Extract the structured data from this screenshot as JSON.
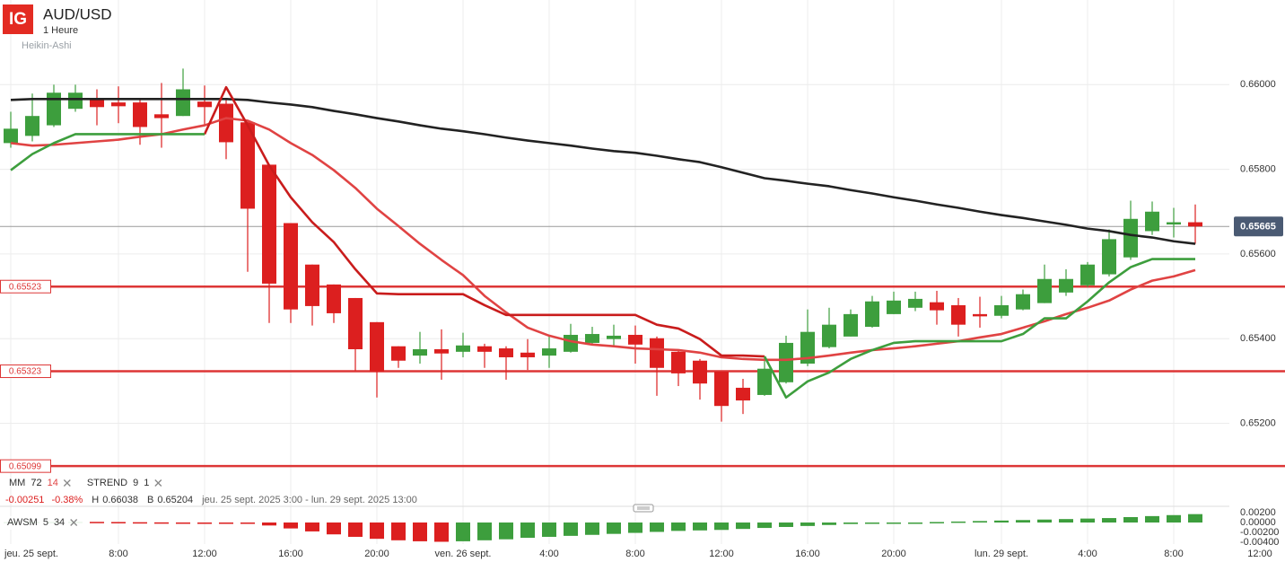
{
  "chart_data": [
    {
      "type": "candlestick",
      "brand": "IG",
      "title": "AUD/USD",
      "subtitle": "1 Heure",
      "style": "Heikin-Ashi",
      "categories": [
        "jeu. 25 sept.",
        null,
        null,
        null,
        null,
        "8:00",
        null,
        null,
        null,
        "12:00",
        null,
        null,
        null,
        "16:00",
        null,
        null,
        null,
        "20:00",
        null,
        null,
        null,
        "ven. 26 sept.",
        null,
        null,
        null,
        "4:00",
        null,
        null,
        null,
        "8:00",
        null,
        null,
        null,
        "12:00",
        null,
        null,
        null,
        "16:00",
        null,
        null,
        null,
        "20:00",
        null,
        null,
        null,
        null,
        "lun. 29 sept.",
        null,
        null,
        null,
        "4:00",
        null,
        null,
        null,
        "8:00",
        null,
        null,
        null,
        "12:00"
      ],
      "open": [
        0.65862,
        0.65879,
        0.65904,
        0.65943,
        0.65964,
        0.65958,
        0.65958,
        0.6593,
        0.65926,
        0.6596,
        0.65955,
        0.65911,
        0.65811,
        0.65673,
        0.65575,
        0.65528,
        0.65496,
        0.65439,
        0.65382,
        0.6536,
        0.65375,
        0.65369,
        0.65382,
        0.65377,
        0.65367,
        0.6536,
        0.65369,
        0.6539,
        0.65399,
        0.65409,
        0.65401,
        0.65369,
        0.65348,
        0.65322,
        0.65284,
        0.65267,
        0.65297,
        0.65341,
        0.6538,
        0.65405,
        0.65428,
        0.65458,
        0.65473,
        0.65486,
        0.65479,
        0.65458,
        0.65454,
        0.65469,
        0.65484,
        0.65509,
        0.65526,
        0.65552,
        0.65592,
        0.65654,
        0.65671,
        0.65675,
        null,
        null,
        null
      ],
      "high": [
        0.65936,
        0.65979,
        0.66,
        0.66,
        0.65989,
        0.65996,
        0.65968,
        0.66004,
        0.66038,
        0.65998,
        0.65968,
        0.65915,
        0.65811,
        0.65673,
        0.65575,
        0.65528,
        0.65496,
        0.65439,
        0.65382,
        0.65416,
        0.65422,
        0.65414,
        0.65388,
        0.65382,
        0.65399,
        0.65405,
        0.65435,
        0.65428,
        0.65433,
        0.65431,
        0.65405,
        0.65373,
        0.65352,
        0.65322,
        0.65305,
        0.65356,
        0.65407,
        0.65469,
        0.65473,
        0.65469,
        0.65501,
        0.65511,
        0.65511,
        0.65513,
        0.65496,
        0.65499,
        0.65501,
        0.65516,
        0.65575,
        0.65564,
        0.65581,
        0.65658,
        0.65726,
        0.65724,
        0.65709,
        0.65717,
        null,
        null,
        null
      ],
      "low": [
        0.65851,
        0.65866,
        0.659,
        0.65936,
        0.65904,
        0.65909,
        0.65858,
        0.65851,
        0.65926,
        0.65904,
        0.65824,
        0.65558,
        0.65437,
        0.65437,
        0.65431,
        0.65437,
        0.65324,
        0.65261,
        0.65331,
        0.65341,
        0.65303,
        0.65356,
        0.65331,
        0.65303,
        0.65326,
        0.65331,
        0.65367,
        0.65386,
        0.65382,
        0.65341,
        0.65265,
        0.65288,
        0.65256,
        0.65204,
        0.65222,
        0.65265,
        0.65294,
        0.65335,
        0.65377,
        0.65405,
        0.65426,
        0.65458,
        0.65465,
        0.65433,
        0.65405,
        0.65426,
        0.65448,
        0.65467,
        0.65484,
        0.65501,
        0.65522,
        0.65547,
        0.65586,
        0.65645,
        0.65639,
        0.65624,
        null,
        null,
        null
      ],
      "close": [
        0.65896,
        0.65926,
        0.65981,
        0.65981,
        0.65947,
        0.65949,
        0.659,
        0.65921,
        0.65989,
        0.65947,
        0.65864,
        0.65707,
        0.6553,
        0.65469,
        0.65477,
        0.6546,
        0.65375,
        0.65322,
        0.65348,
        0.65375,
        0.65365,
        0.65384,
        0.65369,
        0.65356,
        0.65356,
        0.65377,
        0.65409,
        0.65411,
        0.65407,
        0.65386,
        0.65331,
        0.65318,
        0.65294,
        0.65241,
        0.65254,
        0.65329,
        0.6539,
        0.65416,
        0.65433,
        0.65458,
        0.65488,
        0.6549,
        0.65494,
        0.65467,
        0.65433,
        0.65454,
        0.65479,
        0.65505,
        0.65541,
        0.65541,
        0.65575,
        0.65635,
        0.65683,
        0.657,
        0.65675,
        0.65665,
        null,
        null,
        null
      ],
      "up_color": "#3d9e3d",
      "down_color": "#dc1f1f",
      "ylim": [
        0.65076,
        0.662
      ],
      "yticks": [
        {
          "value": 0.652,
          "label": "0.65200"
        },
        {
          "value": 0.654,
          "label": "0.65400"
        },
        {
          "value": 0.656,
          "label": "0.65600"
        },
        {
          "value": 0.658,
          "label": "0.65800"
        },
        {
          "value": 0.66,
          "label": "0.66000"
        }
      ],
      "grid": true,
      "moving_averages": {
        "name": "MM",
        "series": [
          {
            "period": 72,
            "color": "#222222",
            "values": [
              0.65964,
              0.65966,
              0.65966,
              0.65966,
              0.65966,
              0.65966,
              0.65966,
              0.65966,
              0.65966,
              0.65966,
              0.65966,
              0.65964,
              0.65958,
              0.65953,
              0.65947,
              0.65938,
              0.6593,
              0.65921,
              0.65913,
              0.65904,
              0.65896,
              0.6589,
              0.65883,
              0.65875,
              0.65868,
              0.65862,
              0.65856,
              0.65849,
              0.65843,
              0.65839,
              0.65832,
              0.65824,
              0.65817,
              0.65805,
              0.65792,
              0.65779,
              0.65773,
              0.65766,
              0.6576,
              0.65751,
              0.65743,
              0.65734,
              0.65726,
              0.65717,
              0.65709,
              0.657,
              0.65692,
              0.65685,
              0.65677,
              0.65669,
              0.6566,
              0.65654,
              0.65645,
              0.65639,
              0.6563,
              0.65624,
              null,
              null,
              null
            ]
          },
          {
            "period": 14,
            "color": "#e04343",
            "values": [
              0.65862,
              0.65856,
              0.65858,
              0.65862,
              0.65866,
              0.6587,
              0.65877,
              0.65883,
              0.65894,
              0.65904,
              0.65921,
              0.65915,
              0.65894,
              0.65862,
              0.65834,
              0.65798,
              0.65756,
              0.65707,
              0.65666,
              0.65624,
              0.65586,
              0.6555,
              0.65501,
              0.65462,
              0.65426,
              0.65407,
              0.65394,
              0.65386,
              0.65382,
              0.65377,
              0.65375,
              0.65373,
              0.65367,
              0.65356,
              0.65352,
              0.6535,
              0.6535,
              0.65354,
              0.6536,
              0.65367,
              0.65373,
              0.65377,
              0.65382,
              0.65388,
              0.65394,
              0.65403,
              0.65411,
              0.65426,
              0.65441,
              0.65458,
              0.65473,
              0.6549,
              0.65516,
              0.65537,
              0.65547,
              0.65562,
              null,
              null,
              null
            ]
          }
        ]
      },
      "supertrend": {
        "name": "STREND",
        "params": [
          9,
          1
        ],
        "up": {
          "color": "#3d9e3d",
          "values": [
            0.65798,
            0.65836,
            0.65862,
            0.65883,
            0.65883,
            0.65883,
            0.65883,
            0.65883,
            0.65883,
            0.65883,
            null,
            null,
            null,
            null,
            null,
            null,
            null,
            null,
            null,
            null,
            null,
            null,
            null,
            null,
            null,
            null,
            null,
            null,
            null,
            null,
            null,
            null,
            null,
            null,
            null,
            0.65358,
            0.65261,
            0.65299,
            0.6532,
            0.65352,
            0.65373,
            0.6539,
            0.65394,
            0.65394,
            0.65394,
            0.65394,
            0.65394,
            0.65411,
            0.65448,
            0.65448,
            0.65488,
            0.65533,
            0.65569,
            0.65588,
            0.65588,
            0.65588,
            null,
            null,
            null
          ]
        },
        "down": {
          "color": "#c91c1c",
          "values": [
            null,
            null,
            null,
            null,
            null,
            null,
            null,
            null,
            null,
            0.65883,
            0.65994,
            0.65904,
            0.65809,
            0.65734,
            0.65675,
            0.65628,
            0.65564,
            0.65507,
            0.65505,
            0.65505,
            0.65505,
            0.65505,
            0.65479,
            0.65456,
            0.65456,
            0.65456,
            0.65456,
            0.65456,
            0.65456,
            0.65456,
            0.65433,
            0.65424,
            0.65399,
            0.6536,
            0.6536,
            0.65358,
            null,
            null,
            null,
            null,
            null,
            null,
            null,
            null,
            null,
            null,
            null,
            null,
            null,
            null,
            null,
            null,
            null,
            null,
            null,
            null,
            null,
            null,
            null
          ]
        }
      },
      "levels": [
        {
          "value": 0.65523,
          "label": "0.65523"
        },
        {
          "value": 0.65323,
          "label": "0.65323"
        },
        {
          "value": 0.65099,
          "label": "0.65099"
        }
      ],
      "level_color": "#dd3636",
      "last_price": {
        "value": 0.65665,
        "label": "0.65665"
      },
      "change": -0.00251,
      "change_pct": {
        "value": -0.38,
        "label": "-0.38%"
      },
      "stats": [
        {
          "name": "H",
          "value": 0.66038
        },
        {
          "name": "B",
          "value": 0.65204
        }
      ],
      "date_range": "jeu. 25 sept. 2025 3:00 - lun. 29 sept. 2025 13:00"
    },
    {
      "type": "bar",
      "name": "AWSM",
      "params": [
        5,
        34
      ],
      "values": [
        0.0001,
        0.00012,
        0.00014,
        0.00015,
        0.00013,
        0.0001,
        6e-05,
        3e-05,
        1e-05,
        -2e-05,
        -0.0001,
        -0.0002,
        -0.0006,
        -0.0012,
        -0.0018,
        -0.0024,
        -0.0029,
        -0.0033,
        -0.0036,
        -0.0038,
        -0.0039,
        -0.0038,
        -0.0036,
        -0.0034,
        -0.0031,
        -0.0029,
        -0.0027,
        -0.0025,
        -0.0023,
        -0.0021,
        -0.0019,
        -0.0017,
        -0.0016,
        -0.0015,
        -0.0013,
        -0.0011,
        -0.0009,
        -0.0007,
        -0.0005,
        -0.0003,
        -0.0002,
        -0.0001,
        0,
        0.0001,
        0.0002,
        0.0003,
        0.0004,
        0.0005,
        0.0006,
        0.0007,
        0.0008,
        0.0009,
        0.0011,
        0.0013,
        0.0015,
        0.0017,
        null,
        null,
        null
      ],
      "up_color": "#3d9e3d",
      "down_color": "#dc1f1f",
      "ylim": [
        -0.00436,
        0.00364
      ],
      "yticks": [
        {
          "value": 0.002,
          "label": "0.00200"
        },
        {
          "value": 0,
          "label": "0.00000"
        },
        {
          "value": -0.002,
          "label": "-0.00200"
        },
        {
          "value": -0.004,
          "label": "-0.00400"
        }
      ]
    }
  ]
}
